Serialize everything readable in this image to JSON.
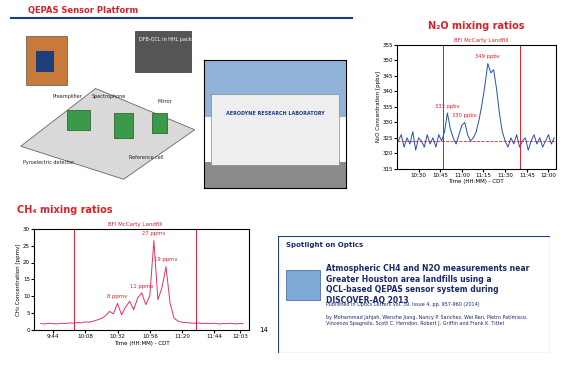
{
  "header": {
    "title": "QEPAS Sensor Platform"
  },
  "diagram": {
    "labels": [
      "DFB-QCL in HHL package",
      "Preamplifier",
      "Spectrophone",
      "Mirror",
      "Pyroelectric detector",
      "Reference cell"
    ]
  },
  "photo": {
    "label": "AERODYNE RESEARCH LABORATORY"
  },
  "chart_data": [
    {
      "type": "line",
      "title": "N₂O mixing ratios",
      "x_label": "Time (HH:MM) - CDT",
      "y_label": "N₂O Concentration [ppbv]",
      "color": "#1f4fbf",
      "grid": false,
      "x": [
        616,
        618,
        620,
        622,
        624,
        626,
        628,
        630,
        632,
        634,
        636,
        638,
        640,
        642,
        644,
        646,
        648,
        650,
        652,
        654,
        656,
        658,
        660,
        662,
        664,
        666,
        668,
        670,
        672,
        674,
        676,
        678,
        680,
        682,
        684,
        686,
        688,
        690,
        692,
        694,
        696,
        698,
        700,
        702,
        704,
        706,
        708,
        710,
        712,
        714,
        716,
        718,
        720,
        722,
        724
      ],
      "values": [
        324,
        326,
        322,
        325,
        323,
        327,
        321,
        325,
        324,
        322,
        326,
        323,
        325,
        322,
        326,
        324,
        327,
        333,
        328,
        325,
        323,
        326,
        329,
        330,
        326,
        324,
        325,
        327,
        331,
        336,
        342,
        349,
        346,
        347,
        341,
        333,
        327,
        324,
        322,
        325,
        323,
        326,
        322,
        324,
        325,
        321,
        324,
        326,
        323,
        325,
        322,
        324,
        326,
        323,
        325
      ],
      "xlim": [
        615,
        725
      ],
      "xticks": [
        {
          "value": 630,
          "label": "10:30"
        },
        {
          "value": 645,
          "label": "10:45"
        },
        {
          "value": 660,
          "label": "11:00"
        },
        {
          "value": 675,
          "label": "11:15"
        },
        {
          "value": 690,
          "label": "11:30"
        },
        {
          "value": 705,
          "label": "11:45"
        },
        {
          "value": 720,
          "label": "12:00"
        }
      ],
      "ylim": [
        315,
        355
      ],
      "yticks": [
        315,
        320,
        325,
        330,
        335,
        340,
        345,
        350,
        355
      ],
      "baseline": 324,
      "span": {
        "label": "BFI McCarty Landfill",
        "x": [
          647,
          700
        ]
      },
      "annotations": [
        {
          "text": "333 ppbv",
          "x": 650,
          "y": 333
        },
        {
          "text": "330 ppbv",
          "x": 662,
          "y": 330
        },
        {
          "text": "349 ppbv",
          "x": 678,
          "y": 349
        }
      ]
    },
    {
      "type": "line",
      "title": "CH₄ mixing ratios",
      "x_label": "Time (HH:MM) - CDT",
      "y_label": "CH₄ Concentration [ppmv]",
      "color": "#e0306a",
      "grid": false,
      "x": [
        575,
        578,
        581,
        584,
        587,
        590,
        593,
        596,
        599,
        602,
        605,
        608,
        611,
        614,
        617,
        620,
        623,
        626,
        629,
        632,
        635,
        638,
        641,
        644,
        647,
        650,
        653,
        656,
        659,
        662,
        665,
        668,
        671,
        674,
        677,
        680,
        683,
        686,
        689,
        692,
        695,
        698,
        701,
        704,
        707,
        710,
        713,
        716,
        719,
        722,
        725
      ],
      "values": [
        1.9,
        1.8,
        2.0,
        1.9,
        1.8,
        2.0,
        1.9,
        2.1,
        2.0,
        2.2,
        2.1,
        2.4,
        2.3,
        2.6,
        3.0,
        3.4,
        4.2,
        5.5,
        4.8,
        7.9,
        4.5,
        6.8,
        8.5,
        6.0,
        9.5,
        11.0,
        7.5,
        10.2,
        26.5,
        9.0,
        12.5,
        18.8,
        8.0,
        3.5,
        2.6,
        2.3,
        2.2,
        2.1,
        2.0,
        2.1,
        1.9,
        2.0,
        1.9,
        2.0,
        1.8,
        1.9,
        1.9,
        2.0,
        1.8,
        1.9,
        1.9
      ],
      "xlim": [
        570,
        730
      ],
      "xticks": [
        {
          "value": 584,
          "label": "9:44"
        },
        {
          "value": 608,
          "label": "10:08"
        },
        {
          "value": 632,
          "label": "10:32"
        },
        {
          "value": 656,
          "label": "10:56"
        },
        {
          "value": 680,
          "label": "11:20"
        },
        {
          "value": 704,
          "label": "11:44"
        },
        {
          "value": 723,
          "label": "12:03"
        }
      ],
      "ylim": [
        0,
        30
      ],
      "yticks": [
        0,
        5,
        10,
        15,
        20,
        25,
        30
      ],
      "span": {
        "label": "BFI McCarty Landfill",
        "x": [
          600,
          690
        ]
      },
      "annotations": [
        {
          "text": "8 ppmv",
          "x": 632,
          "y": 7.9
        },
        {
          "text": "11 ppmv",
          "x": 650,
          "y": 11.0
        },
        {
          "text": "27 ppmv",
          "x": 659,
          "y": 26.5
        },
        {
          "text": "19 ppmv",
          "x": 668,
          "y": 18.8
        }
      ]
    }
  ],
  "article": {
    "heading": "Spotlight on Optics",
    "title": "Atmospheric CH4 and N2O measurements near Greater Houston area landfills using a QCL-based QEPAS sensor system during DISCOVER-AQ 2013",
    "citation": "Published in Optics Letters Vol. 39, Issue 4, pp. 957-960 (2014)",
    "authors": "by Mohammad Jahjah, Wenzhe Jiang, Nancy P. Sanchez, Wei Ren, Pietro Patimisco, Vincenzo Spagnolo, Scott C. Herndon, Robert J. Griffin and Frank K. Tittel"
  },
  "page_number": 14
}
